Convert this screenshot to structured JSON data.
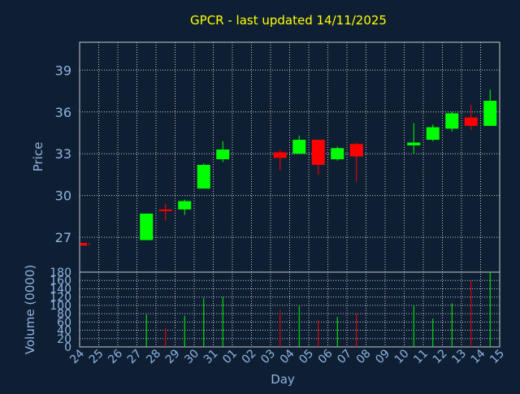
{
  "chart_data": {
    "type": "candlestick",
    "title": "GPCR - last updated 14/11/2025",
    "xlabel": "Day",
    "ylabel_price": "Price",
    "ylabel_volume": "Volume (0000)",
    "x_ticks": [
      "24",
      "25",
      "26",
      "27",
      "28",
      "29",
      "30",
      "31",
      "01",
      "02",
      "03",
      "04",
      "05",
      "06",
      "07",
      "08",
      "09",
      "10",
      "11",
      "12",
      "13",
      "14",
      "15"
    ],
    "price_ylim": [
      24.5,
      41
    ],
    "price_ticks": [
      27,
      30,
      33,
      36,
      39
    ],
    "volume_ylim": [
      0,
      180
    ],
    "volume_ticks": [
      0,
      20,
      40,
      60,
      80,
      100,
      120,
      140,
      160,
      180
    ],
    "grid": true,
    "colors": {
      "up": "#00ff00",
      "down": "#ff0000",
      "title": "#ffff00",
      "axis_text": "#8fb4e0",
      "grid": "#c8c8c8"
    },
    "candles": [
      {
        "day": "24",
        "open": 26.6,
        "high": 26.6,
        "low": 26.4,
        "close": 26.4,
        "volume": 0
      },
      {
        "day": "27",
        "open": 26.8,
        "high": 28.7,
        "low": 26.8,
        "close": 28.7,
        "volume": 78
      },
      {
        "day": "28",
        "open": 29.0,
        "high": 29.4,
        "low": 28.2,
        "close": 28.9,
        "volume": 45
      },
      {
        "day": "29",
        "open": 29.0,
        "high": 29.7,
        "low": 28.6,
        "close": 29.6,
        "volume": 75
      },
      {
        "day": "30",
        "open": 30.5,
        "high": 32.3,
        "low": 30.5,
        "close": 32.2,
        "volume": 118
      },
      {
        "day": "31",
        "open": 32.6,
        "high": 33.9,
        "low": 32.4,
        "close": 33.3,
        "volume": 120
      },
      {
        "day": "03",
        "open": 33.1,
        "high": 33.3,
        "low": 31.8,
        "close": 32.7,
        "volume": 88
      },
      {
        "day": "04",
        "open": 33.0,
        "high": 34.3,
        "low": 33.0,
        "close": 34.0,
        "volume": 98
      },
      {
        "day": "05",
        "open": 34.0,
        "high": 34.0,
        "low": 31.5,
        "close": 32.2,
        "volume": 65
      },
      {
        "day": "06",
        "open": 32.6,
        "high": 33.5,
        "low": 32.5,
        "close": 33.4,
        "volume": 72
      },
      {
        "day": "07",
        "open": 33.7,
        "high": 33.8,
        "low": 31.0,
        "close": 32.8,
        "volume": 80
      },
      {
        "day": "10",
        "open": 33.6,
        "high": 35.2,
        "low": 33.0,
        "close": 33.8,
        "volume": 100
      },
      {
        "day": "11",
        "open": 34.0,
        "high": 35.1,
        "low": 33.9,
        "close": 34.9,
        "volume": 68
      },
      {
        "day": "12",
        "open": 34.8,
        "high": 36.0,
        "low": 34.6,
        "close": 35.9,
        "volume": 105
      },
      {
        "day": "13",
        "open": 35.6,
        "high": 36.5,
        "low": 34.7,
        "close": 35.0,
        "volume": 160
      },
      {
        "day": "14",
        "open": 35.0,
        "high": 37.6,
        "low": 35.0,
        "close": 36.8,
        "volume": 180
      }
    ]
  }
}
